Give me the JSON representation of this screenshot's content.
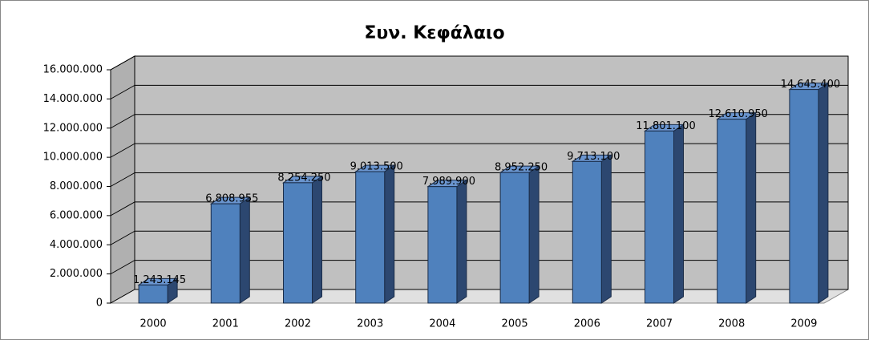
{
  "chart_data": {
    "type": "bar3d",
    "title": "Συν. Κεφάλαιο",
    "categories": [
      "2000",
      "2001",
      "2002",
      "2003",
      "2004",
      "2005",
      "2006",
      "2007",
      "2008",
      "2009"
    ],
    "values": [
      1243145,
      6808955,
      8254250,
      9013500,
      7989900,
      8952250,
      9713100,
      11801100,
      12610950,
      14645400
    ],
    "value_labels": [
      "1.243.145",
      "6.808.955",
      "8.254.250",
      "9.013.500",
      "7.989.900",
      "8.952.250",
      "9.713.100",
      "11.801.100",
      "12.610.950",
      "14.645.400"
    ],
    "color": "#4f81bd",
    "ylim": [
      0,
      16000000
    ],
    "yticks": [
      0,
      {
        "value": 2000000,
        "label": "2.000.000"
      },
      {
        "value": 4000000,
        "label": "4.000.000"
      },
      {
        "value": 6000000,
        "label": "6.000.000"
      },
      {
        "value": 8000000,
        "label": "8.000.000"
      },
      {
        "value": 10000000,
        "label": "10.000.000"
      },
      {
        "value": 12000000,
        "label": "12.000.000"
      },
      {
        "value": 14000000,
        "label": "14.000.000"
      },
      {
        "value": 16000000,
        "label": "16.000.000"
      }
    ],
    "grid": true
  }
}
